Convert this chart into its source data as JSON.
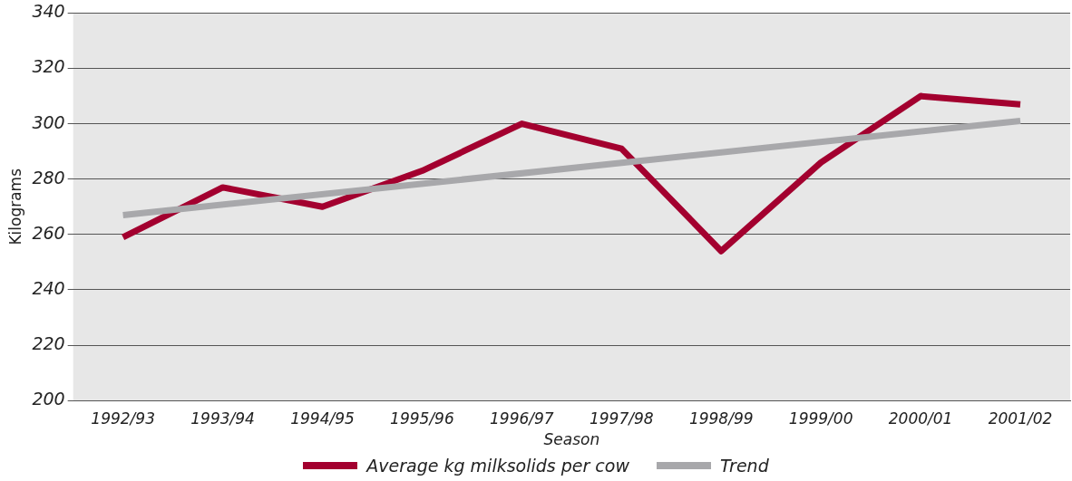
{
  "chart_data": {
    "type": "line",
    "xlabel": "Season",
    "ylabel": "Kilograms",
    "categories": [
      "1992/93",
      "1993/94",
      "1994/95",
      "1995/96",
      "1996/97",
      "1997/98",
      "1998/99",
      "1999/00",
      "2000/01",
      "2001/02"
    ],
    "series": [
      {
        "name": "Average kg milksolids per cow",
        "color": "#a3002f",
        "values": [
          259,
          277,
          270,
          283,
          300,
          291,
          254,
          286,
          310,
          307
        ]
      },
      {
        "name": "Trend",
        "color": "#a8a8ab",
        "values": [
          267,
          null,
          null,
          null,
          null,
          null,
          null,
          null,
          null,
          301
        ]
      }
    ],
    "ylim": [
      200,
      340
    ],
    "yticks": [
      200,
      220,
      240,
      260,
      280,
      300,
      320,
      340
    ],
    "grid": "y",
    "legend": "bottom",
    "marker": "none",
    "line_style": "solid"
  }
}
